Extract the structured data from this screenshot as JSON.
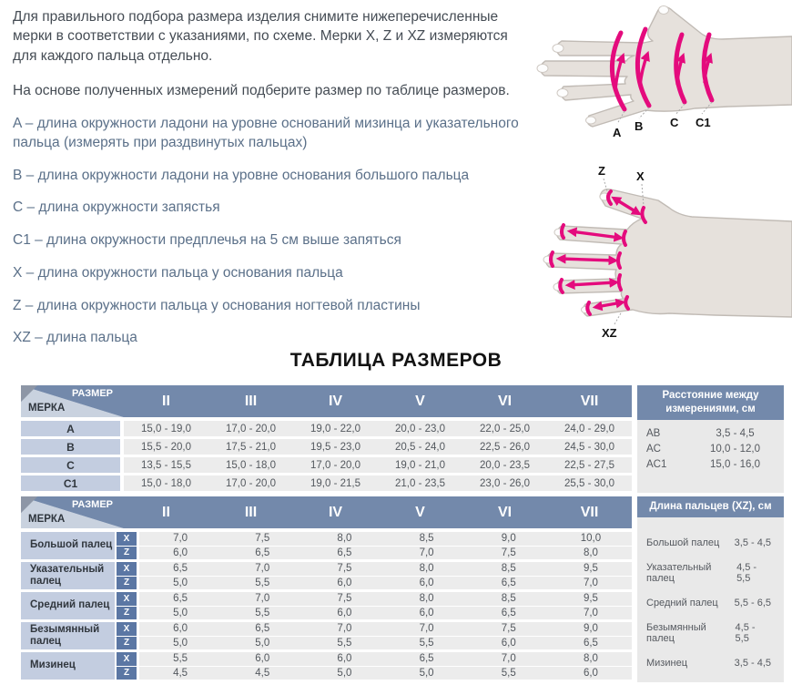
{
  "intro": {
    "p1": "Для правильного подбора размера изделия снимите нижеперечисленные мерки в соответствии с указаниями, по схеме. Мерки X, Z и XZ измеряются для каждого пальца отдельно.",
    "p2": "На основе полученных измерений подберите размер по таблице размеров."
  },
  "definitions": [
    "A – длина окружности ладони на уровне оснований мизинца и указательного пальца (измерять при раздвинутых пальцах)",
    "B – длина окружности ладони на уровне основания большого пальца",
    "C – длина окружности запястья",
    "C1 – длина окружности предплечья на 5 см выше запяться",
    "X – длина окружности пальца у основания пальца",
    "Z – длина окружности пальца у основания ногтевой пластины",
    "XZ – длина пальца"
  ],
  "diagram1": {
    "labels": [
      "A",
      "B",
      "C",
      "C1"
    ]
  },
  "diagram2": {
    "labels": {
      "z": "Z",
      "x": "X",
      "xz": "XZ"
    }
  },
  "title": "ТАБЛИЦА РАЗМЕРОВ",
  "table1": {
    "corner": {
      "top": "РАЗМЕР",
      "bottom": "МЕРКА"
    },
    "columns": [
      "II",
      "III",
      "IV",
      "V",
      "VI",
      "VII"
    ],
    "rows": [
      {
        "label": "A",
        "values": [
          "15,0 - 19,0",
          "17,0 - 20,0",
          "19,0 - 22,0",
          "20,0 - 23,0",
          "22,0 - 25,0",
          "24,0 - 29,0"
        ]
      },
      {
        "label": "B",
        "values": [
          "15,5 - 20,0",
          "17,5 - 21,0",
          "19,5 - 23,0",
          "20,5 - 24,0",
          "22,5 - 26,0",
          "24,5 - 30,0"
        ]
      },
      {
        "label": "C",
        "values": [
          "13,5 - 15,5",
          "15,0 - 18,0",
          "17,0 - 20,0",
          "19,0 - 21,0",
          "20,0 - 23,5",
          "22,5 - 27,5"
        ]
      },
      {
        "label": "C1",
        "values": [
          "15,0 - 18,0",
          "17,0 - 20,0",
          "19,0 - 21,5",
          "21,0 - 23,5",
          "23,0 - 26,0",
          "25,5 - 30,0"
        ]
      }
    ]
  },
  "panel1": {
    "header": "Расстояние между измерениями, см",
    "rows": [
      {
        "label": "AB",
        "value": "3,5 - 4,5"
      },
      {
        "label": "AC",
        "value": "10,0 - 12,0"
      },
      {
        "label": "AC1",
        "value": "15,0 - 16,0"
      }
    ]
  },
  "table2": {
    "corner": {
      "top": "РАЗМЕР",
      "bottom": "МЕРКА"
    },
    "columns": [
      "II",
      "III",
      "IV",
      "V",
      "VI",
      "VII"
    ],
    "sub_labels": [
      "X",
      "Z"
    ],
    "groups": [
      {
        "label": "Большой палец",
        "x": [
          "7,0",
          "7,5",
          "8,0",
          "8,5",
          "9,0",
          "10,0"
        ],
        "z": [
          "6,0",
          "6,5",
          "6,5",
          "7,0",
          "7,5",
          "8,0"
        ]
      },
      {
        "label": "Указательный палец",
        "x": [
          "6,5",
          "7,0",
          "7,5",
          "8,0",
          "8,5",
          "9,5"
        ],
        "z": [
          "5,0",
          "5,5",
          "6,0",
          "6,0",
          "6,5",
          "7,0"
        ]
      },
      {
        "label": "Средний палец",
        "x": [
          "6,5",
          "7,0",
          "7,5",
          "8,0",
          "8,5",
          "9,5"
        ],
        "z": [
          "5,0",
          "5,5",
          "6,0",
          "6,0",
          "6,5",
          "7,0"
        ]
      },
      {
        "label": "Безымянный палец",
        "x": [
          "6,0",
          "6,5",
          "7,0",
          "7,0",
          "7,5",
          "9,0"
        ],
        "z": [
          "5,0",
          "5,0",
          "5,5",
          "5,5",
          "6,0",
          "6,5"
        ]
      },
      {
        "label": "Мизинец",
        "x": [
          "5,5",
          "6,0",
          "6,0",
          "6,5",
          "7,0",
          "8,0"
        ],
        "z": [
          "4,5",
          "4,5",
          "5,0",
          "5,0",
          "5,5",
          "6,0"
        ]
      }
    ]
  },
  "panel2": {
    "header": "Длина пальцев (XZ), см",
    "rows": [
      {
        "label": "Большой палец",
        "value": "3,5 - 4,5"
      },
      {
        "label": "Указательный палец",
        "value": "4,5 - 5,5"
      },
      {
        "label": "Средний палец",
        "value": "5,5 - 6,5"
      },
      {
        "label": "Безымянный палец",
        "value": "4,5 - 5,5"
      },
      {
        "label": "Мизинец",
        "value": "3,5 - 4,5"
      }
    ]
  },
  "colors": {
    "accent-pink": "#e40b7d",
    "header-blue": "#7389ab",
    "label-blue": "#c3cde0",
    "badge-blue": "#5b77a4",
    "cell-gray": "#ececec",
    "panel-gray": "#e9e9e9",
    "text-dark": "#454c54",
    "text-blue": "#5b7089"
  }
}
